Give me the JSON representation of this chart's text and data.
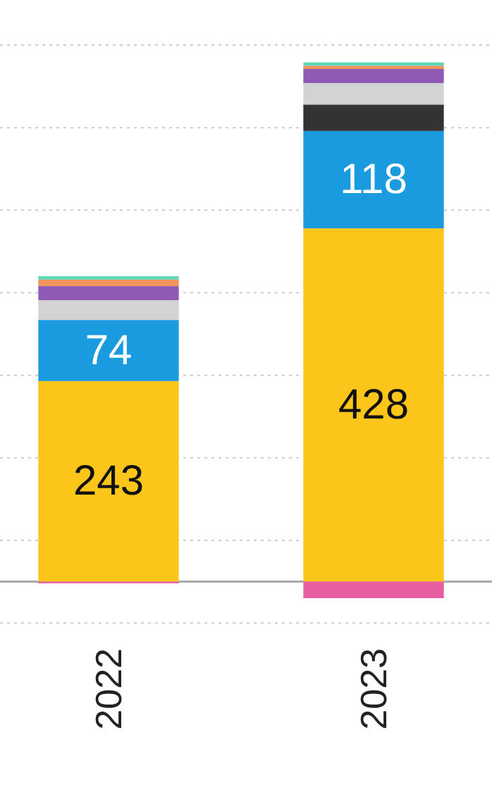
{
  "chart_data": {
    "type": "bar",
    "stacked": true,
    "categories": [
      "2022",
      "2023"
    ],
    "series": [
      {
        "color": "#fbc51a",
        "values": [
          243,
          428
        ],
        "value_labels": [
          "243",
          "428"
        ]
      },
      {
        "color": "#1a9be0",
        "values": [
          74,
          118
        ],
        "value_labels": [
          "74",
          "118"
        ]
      },
      {
        "color": "#333333",
        "values": [
          0,
          32
        ]
      },
      {
        "color": "#d3d3d3",
        "values": [
          24,
          26
        ]
      },
      {
        "color": "#8e5ab5",
        "values": [
          17,
          17
        ]
      },
      {
        "color": "#f0945a",
        "values": [
          8,
          4
        ]
      },
      {
        "color": "#5cd6b8",
        "values": [
          4,
          4
        ]
      },
      {
        "color": "#e85da0",
        "values": [
          -2,
          -20
        ]
      }
    ],
    "ylim": [
      -55,
      650
    ],
    "yticks": [
      {
        "value": -50,
        "label": null
      },
      {
        "value": 50,
        "label": null
      },
      {
        "value": 150,
        "label": null
      },
      {
        "value": 250,
        "label": null
      },
      {
        "value": 350,
        "label": null
      },
      {
        "value": 450,
        "label": null
      },
      {
        "value": 550,
        "label": null
      },
      {
        "value": 650,
        "label": null
      }
    ],
    "grid": "y",
    "tick_labels": "x"
  }
}
